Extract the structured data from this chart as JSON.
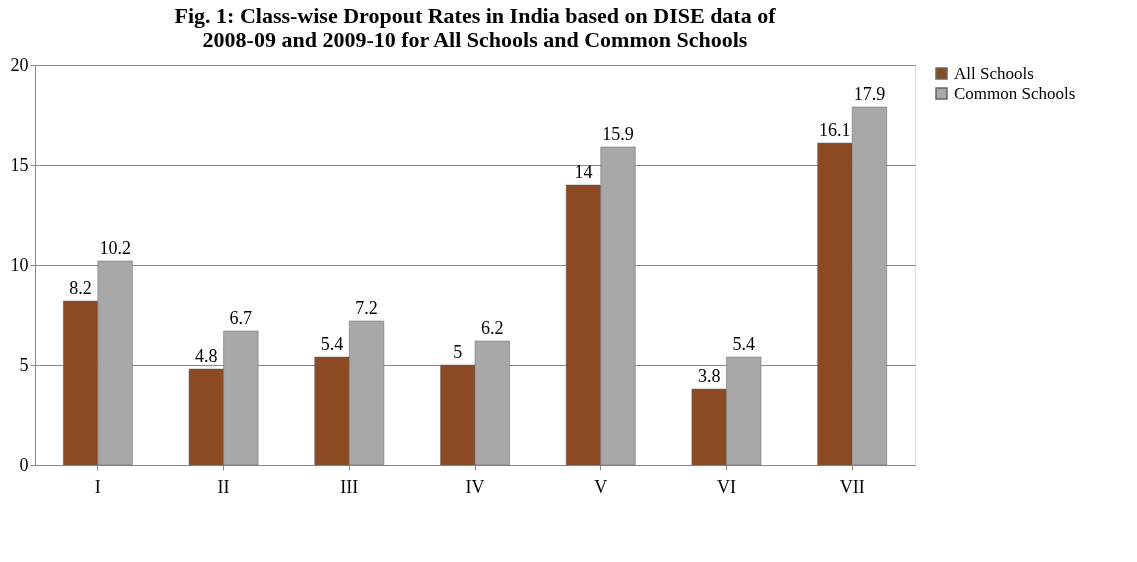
{
  "chart_data": {
    "type": "bar",
    "title": [
      "Fig. 1: Class-wise Dropout Rates in India based on DISE data of",
      "2008-09  and 2009-10 for All Schools and Common Schools"
    ],
    "categories": [
      "I",
      "II",
      "III",
      "IV",
      "V",
      "VI",
      "VII"
    ],
    "series": [
      {
        "name": "All Schools",
        "color": "#8b4a22",
        "values": [
          8.2,
          4.8,
          5.4,
          5,
          14,
          3.8,
          16.1
        ]
      },
      {
        "name": "Common Schools",
        "color": "#a8a8a8",
        "values": [
          10.2,
          6.7,
          7.2,
          6.2,
          15.9,
          5.4,
          17.9
        ]
      }
    ],
    "ylim": [
      0,
      20
    ],
    "yticks": [
      0,
      5,
      10,
      15,
      20
    ],
    "grid": "y",
    "legend": "right",
    "data_labels": true
  }
}
